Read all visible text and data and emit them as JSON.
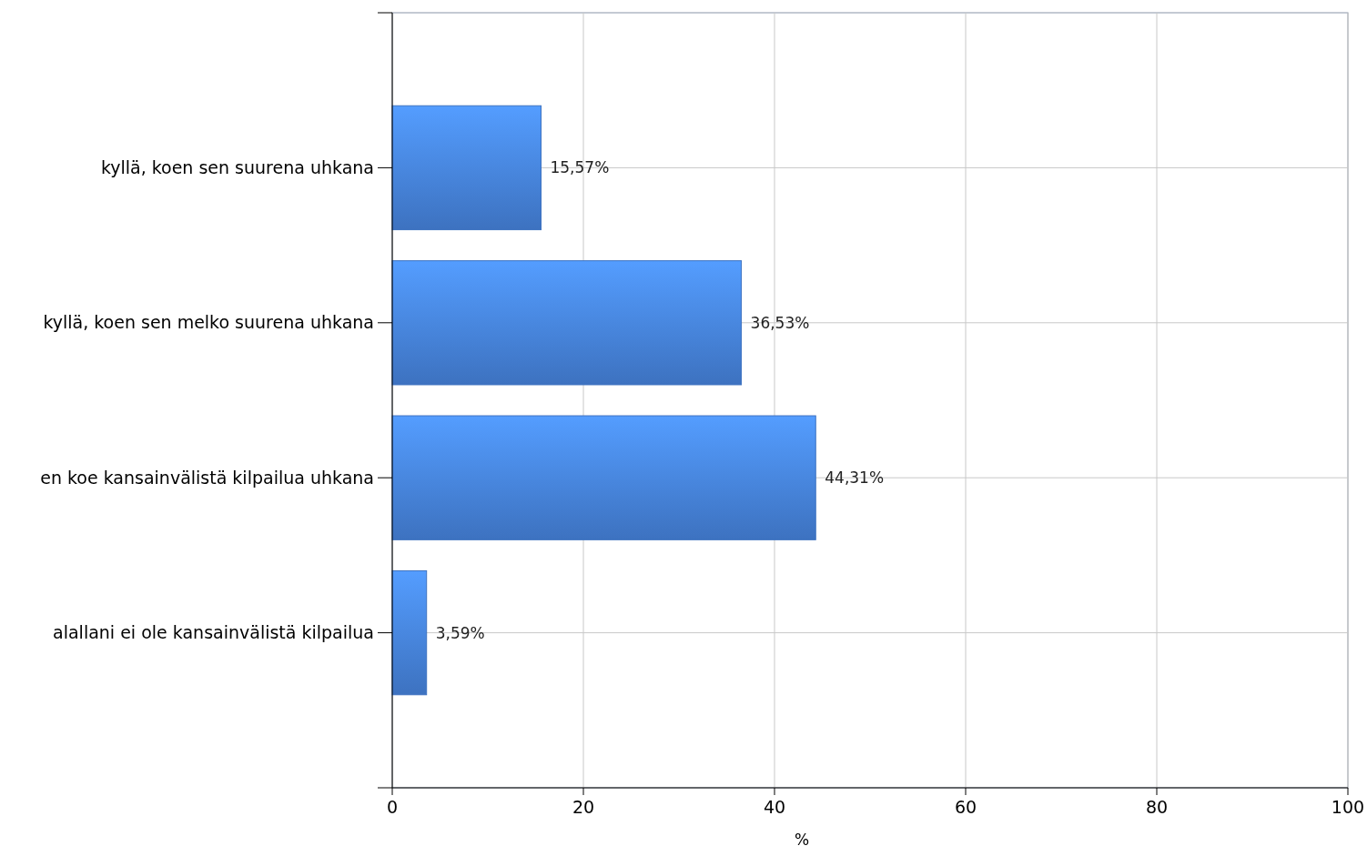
{
  "chart_data": {
    "type": "bar",
    "orientation": "horizontal",
    "xlabel": "%",
    "categories": [
      "kyllä, koen sen suurena uhkana",
      "kyllä, koen sen melko suurena uhkana",
      "en koe kansainvälistä kilpailua uhkana",
      "alallani ei ole kansainvälistä kilpailua"
    ],
    "values": [
      15.57,
      36.53,
      44.31,
      3.59
    ],
    "value_labels": [
      "15,57%",
      "36,53%",
      "44,31%",
      "3,59%"
    ],
    "color": "#3d72c0",
    "xlim": [
      0,
      100
    ],
    "xticks": [
      0,
      20,
      40,
      60,
      80,
      100
    ],
    "grid": true
  }
}
